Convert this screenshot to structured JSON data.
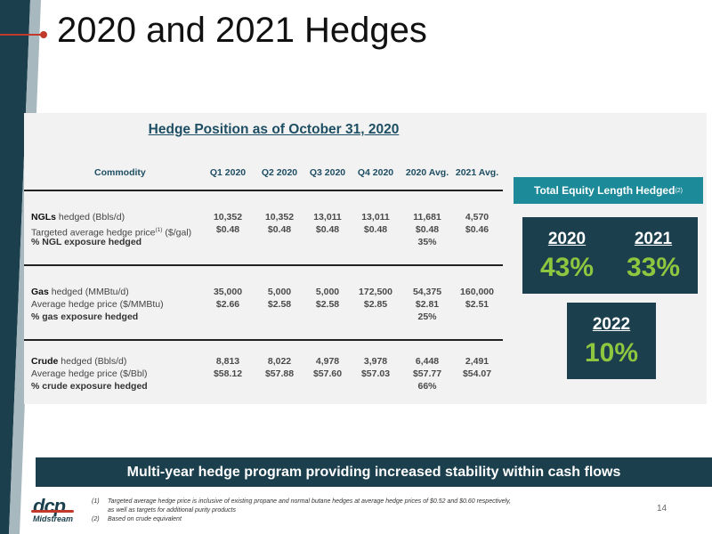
{
  "title": "2020 and 2021 Hedges",
  "hedge_heading": "Hedge Position as of October 31, 2020",
  "table": {
    "headers": [
      "Commodity",
      "Q1 2020",
      "Q2 2020",
      "Q3 2020",
      "Q4 2020",
      "2020 Avg.",
      "2021 Avg."
    ],
    "groups": [
      {
        "name": "NGLs",
        "rows": [
          {
            "label_bold": "NGLs",
            "label_rest": " hedged (Bbls/d)",
            "values": [
              "10,352",
              "10,352",
              "13,011",
              "13,011",
              "11,681",
              "4,570"
            ]
          },
          {
            "label_pre": "Targeted average hedge price",
            "label_sup": "(1)",
            "label_rest": " ($/gal)",
            "values": [
              "$0.48",
              "$0.48",
              "$0.48",
              "$0.48",
              "$0.48",
              "$0.46"
            ]
          },
          {
            "label": "% NGL exposure hedged",
            "avg_2020": "35%"
          }
        ]
      },
      {
        "name": "Gas",
        "rows": [
          {
            "label_bold": "Gas",
            "label_rest": " hedged (MMBtu/d)",
            "values": [
              "35,000",
              "5,000",
              "5,000",
              "172,500",
              "54,375",
              "160,000"
            ]
          },
          {
            "label": "Average hedge price ($/MMBtu)",
            "values": [
              "$2.66",
              "$2.58",
              "$2.58",
              "$2.85",
              "$2.81",
              "$2.51"
            ]
          },
          {
            "label": "% gas exposure hedged",
            "avg_2020": "25%"
          }
        ]
      },
      {
        "name": "Crude",
        "rows": [
          {
            "label_bold": "Crude",
            "label_rest": " hedged (Bbls/d)",
            "values": [
              "8,813",
              "8,022",
              "4,978",
              "3,978",
              "6,448",
              "2,491"
            ]
          },
          {
            "label": "Average hedge price ($/Bbl)",
            "values": [
              "$58.12",
              "$57.88",
              "$57.60",
              "$57.03",
              "$57.77",
              "$54.07"
            ]
          },
          {
            "label": "% crude exposure hedged",
            "avg_2020": "66%"
          }
        ]
      }
    ]
  },
  "equity": {
    "label": "Total Equity Length Hedged",
    "label_sup": "(2)",
    "years": [
      {
        "year": "2020",
        "pct": "43%"
      },
      {
        "year": "2021",
        "pct": "33%"
      },
      {
        "year": "2022",
        "pct": "10%"
      }
    ]
  },
  "banner": "Multi-year hedge program providing increased stability within cash flows",
  "logo": {
    "mark": "dcp",
    "sub": "Midstream"
  },
  "footnotes": [
    {
      "num": "(1)",
      "text": "Targeted average hedge price is inclusive of existing propane and normal butane hedges at average hedge prices of $0.52 and $0.60 respectively,"
    },
    {
      "num": "",
      "text": "as well as targets for additional purity products"
    },
    {
      "num": "(2)",
      "text": "Based on crude equivalent"
    }
  ],
  "page_number": "14",
  "colors": {
    "navy": "#1b3f4d",
    "teal": "#1d8a99",
    "green_accent": "#8dc63f",
    "red_accent": "#c0392b",
    "heading": "#1e4e63"
  }
}
